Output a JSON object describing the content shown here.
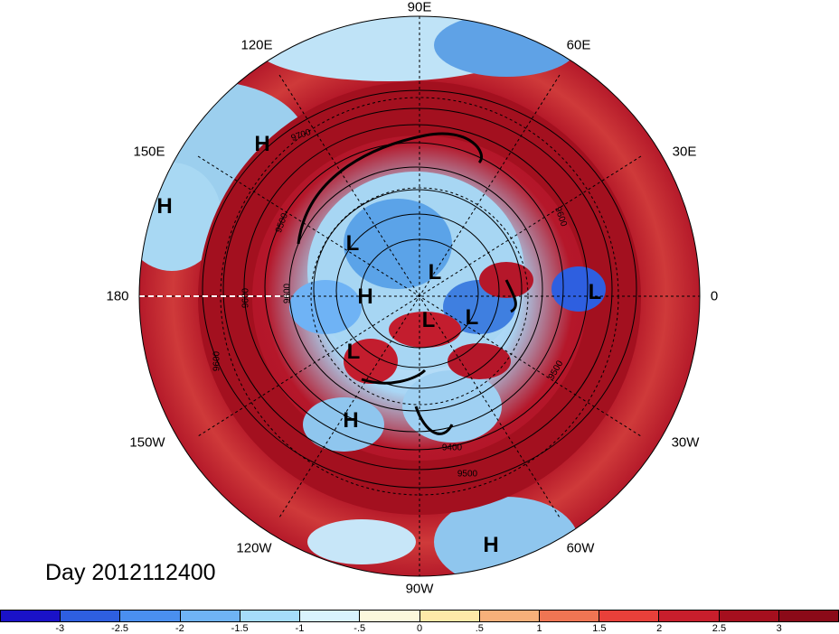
{
  "title": "Day 2012112400",
  "map": {
    "projection": "north-polar-stereographic",
    "longitude_labels": [
      "90E",
      "60E",
      "30E",
      "0",
      "30W",
      "60W",
      "90W",
      "120W",
      "150W",
      "180",
      "150E",
      "120E"
    ],
    "contour_labels": [
      "9700",
      "9500",
      "9600",
      "9600",
      "9500",
      "9400",
      "9500",
      "9600",
      "9600"
    ],
    "pressure_centers": [
      {
        "type": "H",
        "label": "H"
      },
      {
        "type": "H",
        "label": "H"
      },
      {
        "type": "L",
        "label": "L"
      },
      {
        "type": "L",
        "label": "L"
      },
      {
        "type": "H",
        "label": "H"
      },
      {
        "type": "L",
        "label": "L"
      },
      {
        "type": "L",
        "label": "L"
      },
      {
        "type": "L",
        "label": "L"
      },
      {
        "type": "L",
        "label": "L"
      },
      {
        "type": "H",
        "label": "H"
      },
      {
        "type": "H",
        "label": "H"
      }
    ]
  },
  "colorbar": {
    "tick_labels": [
      "-3",
      "-2.5",
      "-2",
      "-1.5",
      "-1",
      "-.5",
      "0",
      ".5",
      "1",
      "1.5",
      "2",
      "2.5",
      "3"
    ],
    "colors": [
      "#1a12c8",
      "#2e5fe0",
      "#4a8fef",
      "#6fb3f5",
      "#a6dcfa",
      "#d9f2fd",
      "#fbf8dc",
      "#fde9a8",
      "#f7b07a",
      "#f07553",
      "#e8403a",
      "#c81e2c",
      "#a50f1e",
      "#8b0a18"
    ]
  }
}
